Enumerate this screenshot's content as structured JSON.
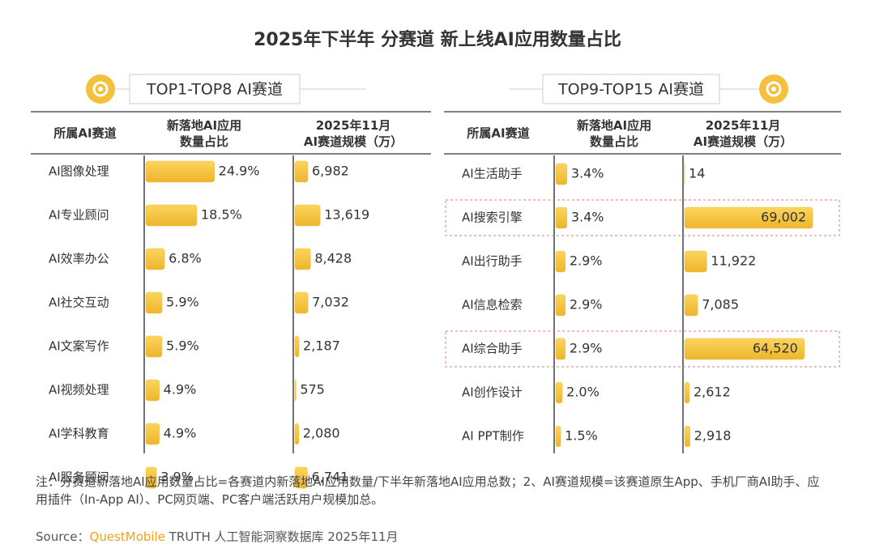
{
  "title": "2025年下半年 分赛道 新上线AI应用数量占比",
  "chart_data": [
    {
      "type": "table-bar",
      "title": "TOP1-TOP8 AI赛道",
      "category_header": "所属AI赛道",
      "categories": [
        "AI图像处理",
        "AI专业顾问",
        "AI效率办公",
        "AI社交互动",
        "AI文案写作",
        "AI视频处理",
        "AI学科教育",
        "AI服务顾问"
      ],
      "series": [
        {
          "name": "新落地AI应用\n数量占比",
          "color": "#f5c03c",
          "xlim": [
            0,
            30
          ],
          "values": [
            24.9,
            18.5,
            6.8,
            5.9,
            5.9,
            4.9,
            4.9,
            3.9
          ],
          "value_labels": [
            "24.9%",
            "18.5%",
            "6.8%",
            "5.9%",
            "5.9%",
            "4.9%",
            "4.9%",
            "3.9%"
          ]
        },
        {
          "name": "2025年11月\nAI赛道规模（万）",
          "color": "#f5c03c",
          "xlim": [
            0,
            72000
          ],
          "values": [
            6982,
            13619,
            8428,
            7032,
            2187,
            575,
            2080,
            6741
          ],
          "value_labels": [
            "6,982",
            "13,619",
            "8,428",
            "7,032",
            "2,187",
            "575",
            "2,080",
            "6,741"
          ]
        }
      ],
      "highlight": []
    },
    {
      "type": "table-bar",
      "title": "TOP9-TOP15 AI赛道",
      "category_header": "所属AI赛道",
      "categories": [
        "AI生活助手",
        "AI搜索引擎",
        "AI出行助手",
        "AI信息检索",
        "AI综合助手",
        "AI创作设计",
        "AI PPT制作"
      ],
      "series": [
        {
          "name": "新落地AI应用\n数量占比",
          "color": "#f5c03c",
          "xlim": [
            0,
            25
          ],
          "values": [
            3.4,
            3.4,
            2.9,
            2.9,
            2.9,
            2.0,
            1.5
          ],
          "value_labels": [
            "3.4%",
            "3.4%",
            "2.9%",
            "2.9%",
            "2.9%",
            "2.0%",
            "1.5%"
          ]
        },
        {
          "name": "2025年11月\nAI赛道规模（万）",
          "color": "#f5c03c",
          "xlim": [
            0,
            72000
          ],
          "values": [
            14,
            69002,
            11922,
            7085,
            64520,
            2612,
            2918
          ],
          "value_labels": [
            "14",
            "69,002",
            "11,922",
            "7,085",
            "64,520",
            "2,612",
            "2,918"
          ]
        }
      ],
      "highlight": [
        1,
        4
      ]
    }
  ],
  "note": "注：分赛道新落地AI应用数量占比=各赛道内新落地AI应用数量/下半年新落地AI应用总数；2、AI赛道规模=该赛道原生App、手机厂商AI助手、应用插件（In-App AI）、PC网页端、PC客户端活跃用户规模加总。",
  "source": [
    "Source：",
    "QuestMobile",
    " TRUTH 人工智能洞察数据库 2025年11月"
  ]
}
